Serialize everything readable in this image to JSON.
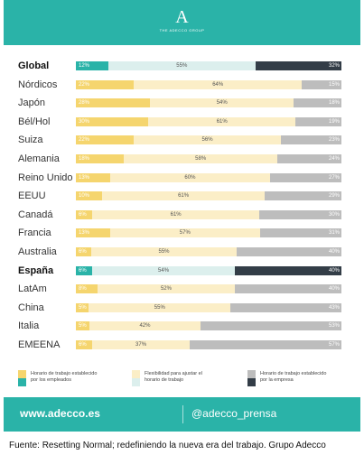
{
  "brand": {
    "logo_letter": "A",
    "logo_subtitle": "THE ADECCO GROUP"
  },
  "colors": {
    "teal": "#2ab3a8",
    "yellow": "#f5d56e",
    "light_yellow": "#fbeec7",
    "light_teal": "#dcefed",
    "gray": "#bdbdbd",
    "dark": "#333d47"
  },
  "chart_data": {
    "type": "bar",
    "stacked": "horizontal-100%",
    "categories": [
      "Global",
      "Nórdicos",
      "Japón",
      "Bél/Hol",
      "Suiza",
      "Alemania",
      "Reino Unido",
      "EEUU",
      "Canadá",
      "Francia",
      "Australia",
      "España",
      "LatAm",
      "China",
      "Italia",
      "EMEENA"
    ],
    "highlight": [
      "Global",
      "España"
    ],
    "series": [
      {
        "name": "Horario de trabajo establecido por los empleados",
        "values": [
          12,
          22,
          28,
          30,
          22,
          18,
          13,
          10,
          6,
          13,
          6,
          6,
          8,
          5,
          5,
          6
        ]
      },
      {
        "name": "Flexibilidad para ajustar el horario de trabajo",
        "values": [
          55,
          64,
          54,
          61,
          56,
          58,
          60,
          61,
          61,
          57,
          55,
          54,
          52,
          55,
          42,
          37
        ]
      },
      {
        "name": "Horario de trabajo establecido por la empresa",
        "values": [
          32,
          15,
          18,
          19,
          23,
          24,
          27,
          29,
          30,
          31,
          40,
          40,
          40,
          43,
          53,
          57
        ]
      }
    ],
    "value_labels": [
      [
        "12%",
        "55%",
        "32%"
      ],
      [
        "22%",
        "64%",
        "15%"
      ],
      [
        "28%",
        "54%",
        "18%"
      ],
      [
        "30%",
        "61%",
        "19%"
      ],
      [
        "22%",
        "56%",
        "23%"
      ],
      [
        "18%",
        "58%",
        "24%"
      ],
      [
        "13%",
        "60%",
        "27%"
      ],
      [
        "10%",
        "61%",
        "29%"
      ],
      [
        "6%",
        "61%",
        "30%"
      ],
      [
        "13%",
        "57%",
        "31%"
      ],
      [
        "6%",
        "55%",
        "40%"
      ],
      [
        "6%",
        "54%",
        "40%"
      ],
      [
        "8%",
        "52%",
        "40%"
      ],
      [
        "5%",
        "55%",
        "43%"
      ],
      [
        "5%",
        "42%",
        "53%"
      ],
      [
        "6%",
        "37%",
        "57%"
      ]
    ],
    "legend_placement": "bottom"
  },
  "footer": {
    "url": "www.adecco.es",
    "handle": "@adecco_prensa"
  },
  "source": "Fuente: Resetting Normal; redefiniendo la nueva era del trabajo. Grupo Adecco"
}
